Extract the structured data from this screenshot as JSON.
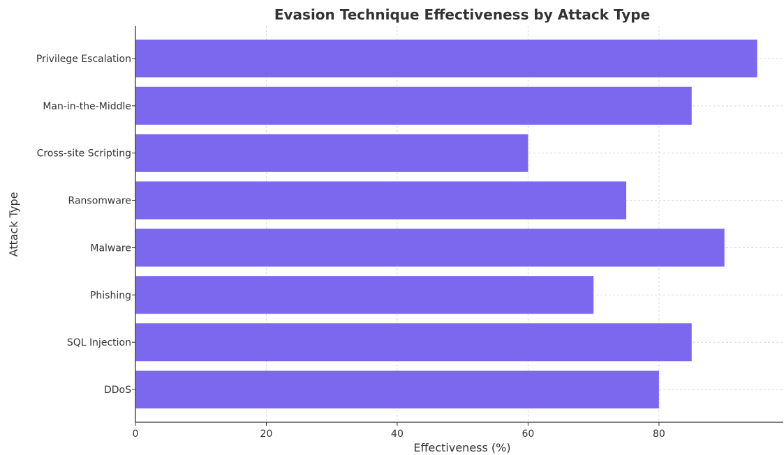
{
  "chart_data": {
    "type": "bar",
    "orientation": "horizontal",
    "title": "Evasion Technique Effectiveness by Attack Type",
    "xlabel": "Effectiveness (%)",
    "ylabel": "Attack Type",
    "categories": [
      "DDoS",
      "SQL Injection",
      "Phishing",
      "Malware",
      "Ransomware",
      "Cross-site Scripting",
      "Man-in-the-Middle",
      "Privilege Escalation"
    ],
    "values": [
      80,
      85,
      70,
      90,
      75,
      60,
      85,
      95
    ],
    "xlim": [
      0,
      99
    ],
    "xticks": [
      0,
      20,
      40,
      60,
      80
    ],
    "bar_color": "#7b68ee",
    "grid": true
  }
}
